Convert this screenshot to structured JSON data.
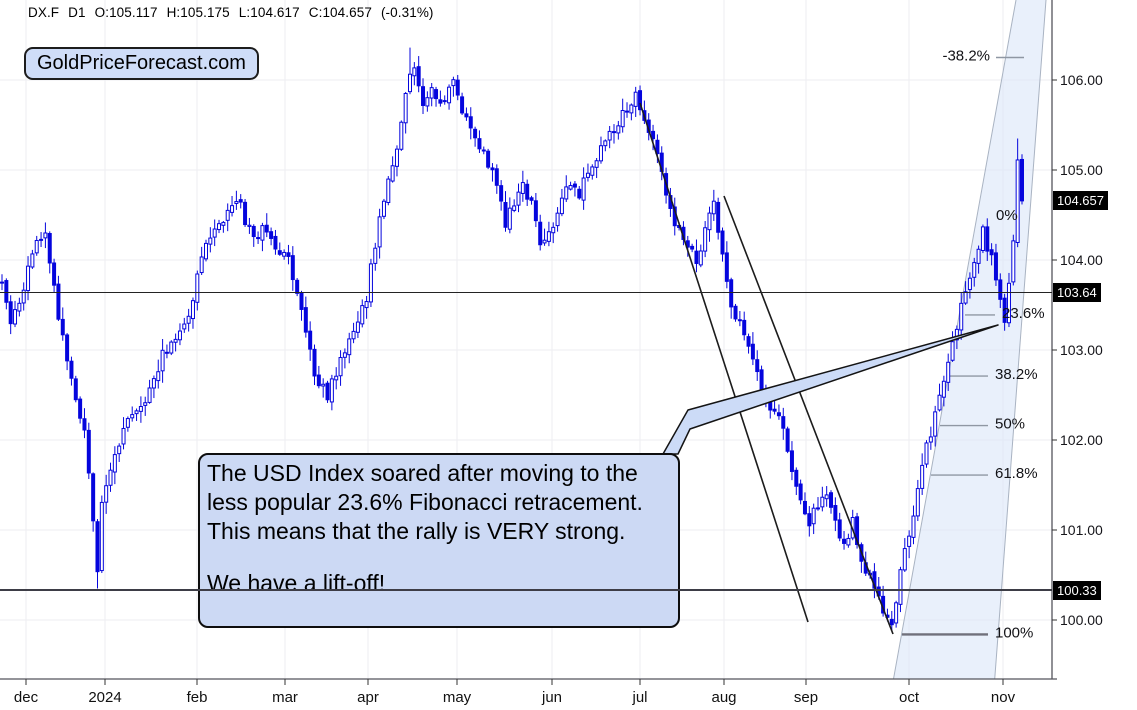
{
  "header": {
    "tokens": [
      "DX.F",
      "D1",
      "O:105.117",
      "H:105.175",
      "L:104.617",
      "C:104.657",
      "(-0.31%)"
    ]
  },
  "watermark_badge": {
    "label": "GoldPriceForecast.com"
  },
  "callout": {
    "text1": "The USD Index soared after moving to the less popular 23.6% Fibonacci retracement. This means that the rally is VERY strong.",
    "text2": "We have a lift-off!"
  },
  "price_markers": [
    {
      "label": "104.657",
      "price": 104.657
    },
    {
      "label": "103.64",
      "price": 103.64
    },
    {
      "label": "100.33",
      "price": 100.33
    }
  ],
  "chart_data": {
    "type": "candlestick",
    "symbol": "DX.F",
    "interval": "D1",
    "last_candle": {
      "open": 105.117,
      "high": 105.175,
      "low": 104.617,
      "close": 104.657,
      "change": "(-0.31%)"
    },
    "y_axis": {
      "min": 99.3,
      "max": 106.9,
      "ticks": [
        106,
        105,
        104,
        103,
        102,
        101,
        100
      ],
      "grid": true
    },
    "x_axis": {
      "labels": [
        "dec",
        "2024",
        "feb",
        "mar",
        "apr",
        "may",
        "jun",
        "jul",
        "aug",
        "sep",
        "oct",
        "nov"
      ],
      "grid": true
    },
    "horizontal_lines": [
      {
        "price": 103.64
      },
      {
        "price": 100.33
      }
    ],
    "fibonacci": {
      "levels": [
        {
          "pct": "-38.2%",
          "price": 106.25
        },
        {
          "pct": "0%",
          "price": 104.48
        },
        {
          "pct": "23.6%",
          "price": 103.39
        },
        {
          "pct": "38.2%",
          "price": 102.71
        },
        {
          "pct": "50%",
          "price": 102.16
        },
        {
          "pct": "61.8%",
          "price": 101.61
        },
        {
          "pct": "100%",
          "price": 99.84
        }
      ]
    },
    "key_extremes": {
      "december_low": 100.35,
      "april_high": 106.36,
      "september_low": 99.88,
      "november_high": 105.35
    },
    "annotations": [
      "two parallel descending trendlines from the July top into the September low",
      "steep rising shaded channel along the October-November rally"
    ],
    "price_path_anchors": [
      [
        0,
        103.75
      ],
      [
        2,
        103.3
      ],
      [
        4,
        103.55
      ],
      [
        7,
        104.05
      ],
      [
        10,
        104.35
      ],
      [
        13,
        103.4
      ],
      [
        15,
        102.9
      ],
      [
        17,
        102.4
      ],
      [
        19,
        102.05
      ],
      [
        21,
        101.1
      ],
      [
        22,
        100.55
      ],
      [
        23,
        101.3
      ],
      [
        25,
        101.65
      ],
      [
        28,
        102.15
      ],
      [
        31,
        102.35
      ],
      [
        34,
        102.55
      ],
      [
        37,
        102.95
      ],
      [
        40,
        103.15
      ],
      [
        43,
        103.4
      ],
      [
        46,
        104.0
      ],
      [
        48,
        104.3
      ],
      [
        51,
        104.4
      ],
      [
        54,
        104.7
      ],
      [
        56,
        104.45
      ],
      [
        58,
        104.2
      ],
      [
        60,
        104.4
      ],
      [
        63,
        104.15
      ],
      [
        66,
        104.0
      ],
      [
        68,
        103.6
      ],
      [
        70,
        103.25
      ],
      [
        72,
        102.75
      ],
      [
        75,
        102.5
      ],
      [
        78,
        102.85
      ],
      [
        81,
        103.25
      ],
      [
        84,
        103.6
      ],
      [
        86,
        104.2
      ],
      [
        88,
        104.7
      ],
      [
        90,
        105.0
      ],
      [
        92,
        105.6
      ],
      [
        94,
        106.1
      ],
      [
        95,
        106.2
      ],
      [
        97,
        105.7
      ],
      [
        99,
        105.85
      ],
      [
        101,
        105.7
      ],
      [
        104,
        105.95
      ],
      [
        106,
        105.7
      ],
      [
        108,
        105.45
      ],
      [
        111,
        105.2
      ],
      [
        113,
        105.0
      ],
      [
        116,
        104.4
      ],
      [
        118,
        104.65
      ],
      [
        120,
        104.8
      ],
      [
        122,
        104.6
      ],
      [
        124,
        104.15
      ],
      [
        126,
        104.3
      ],
      [
        128,
        104.55
      ],
      [
        130,
        104.85
      ],
      [
        133,
        104.75
      ],
      [
        136,
        105.05
      ],
      [
        139,
        105.3
      ],
      [
        142,
        105.55
      ],
      [
        144,
        105.7
      ],
      [
        146,
        105.85
      ],
      [
        148,
        105.6
      ],
      [
        150,
        105.35
      ],
      [
        152,
        104.95
      ],
      [
        154,
        104.55
      ],
      [
        156,
        104.35
      ],
      [
        158,
        104.2
      ],
      [
        160,
        103.95
      ],
      [
        162,
        104.3
      ],
      [
        164,
        104.7
      ],
      [
        166,
        104.0
      ],
      [
        168,
        103.5
      ],
      [
        170,
        103.3
      ],
      [
        172,
        103.0
      ],
      [
        174,
        102.7
      ],
      [
        176,
        102.45
      ],
      [
        178,
        102.3
      ],
      [
        180,
        102.1
      ],
      [
        182,
        101.7
      ],
      [
        184,
        101.3
      ],
      [
        186,
        101.1
      ],
      [
        188,
        101.25
      ],
      [
        190,
        101.45
      ],
      [
        192,
        101.1
      ],
      [
        194,
        100.85
      ],
      [
        196,
        101.1
      ],
      [
        198,
        100.7
      ],
      [
        200,
        100.45
      ],
      [
        202,
        100.2
      ],
      [
        204,
        100.0
      ],
      [
        205,
        99.95
      ],
      [
        206,
        100.2
      ],
      [
        207,
        100.5
      ],
      [
        209,
        101.0
      ],
      [
        211,
        101.45
      ],
      [
        213,
        101.9
      ],
      [
        215,
        102.3
      ],
      [
        217,
        102.7
      ],
      [
        219,
        103.1
      ],
      [
        221,
        103.45
      ],
      [
        223,
        103.75
      ],
      [
        225,
        104.1
      ],
      [
        226,
        104.3
      ],
      [
        227,
        104.15
      ],
      [
        228,
        104.0
      ],
      [
        229,
        103.75
      ],
      [
        230,
        103.55
      ],
      [
        231,
        103.35
      ],
      [
        232,
        103.75
      ],
      [
        233,
        104.2
      ],
      [
        234,
        105.05
      ],
      [
        235,
        104.657
      ]
    ]
  }
}
